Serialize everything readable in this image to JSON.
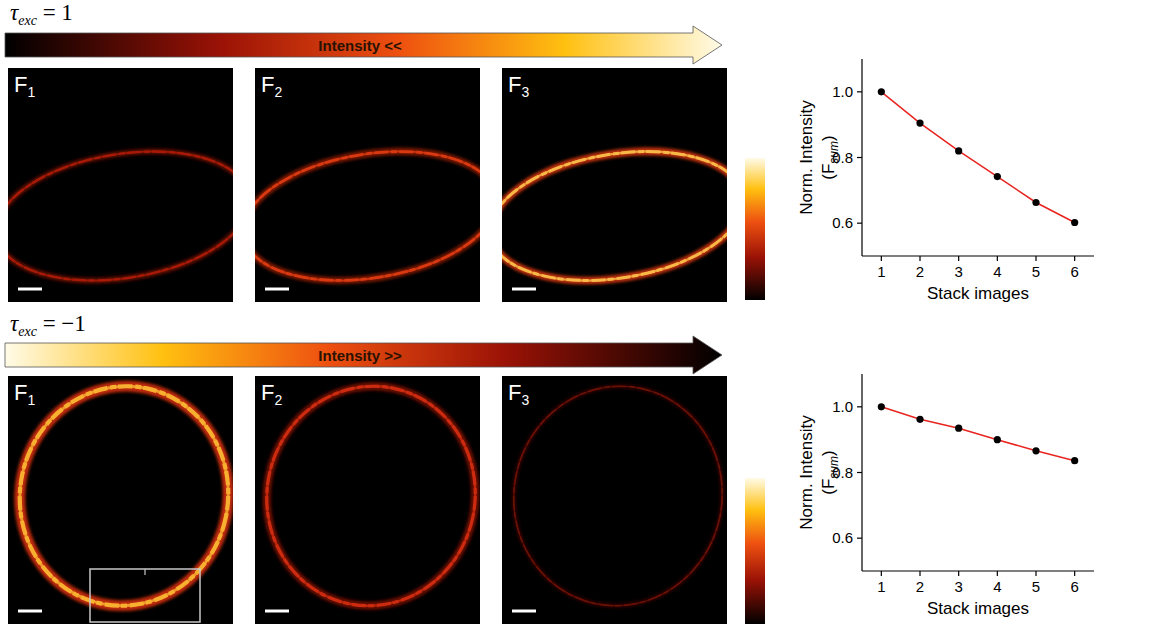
{
  "rows": [
    {
      "tau": {
        "symbol": "τ",
        "sub": "exc",
        "rest": " = 1"
      },
      "arrow_text": "Intensity <<",
      "frames": [
        {
          "main": "F",
          "sub": "1"
        },
        {
          "main": "F",
          "sub": "2"
        },
        {
          "main": "F",
          "sub": "3"
        }
      ]
    },
    {
      "tau": {
        "symbol": "τ",
        "sub": "exc",
        "rest": " = −1"
      },
      "arrow_text": "Intensity >>",
      "frames": [
        {
          "main": "F",
          "sub": "1"
        },
        {
          "main": "F",
          "sub": "2"
        },
        {
          "main": "F",
          "sub": "3"
        }
      ]
    }
  ],
  "chart_data": [
    {
      "type": "line",
      "xlabel": "Stack images",
      "ylabel": [
        "Norm. Intensity",
        "(F",
        "sum",
        ")"
      ],
      "x": [
        1,
        2,
        3,
        4,
        5,
        6
      ],
      "series": [
        {
          "color": "#e8241f",
          "marker": "circle",
          "values": [
            1.0,
            0.905,
            0.82,
            0.742,
            0.663,
            0.602
          ]
        }
      ],
      "xlim": [
        0.5,
        6.5
      ],
      "ylim": [
        0.5,
        1.1
      ],
      "xticks": [
        1,
        2,
        3,
        4,
        5,
        6
      ],
      "yticks": [
        0.6,
        0.8,
        {
          "value": 1,
          "label": "1.0"
        }
      ]
    },
    {
      "type": "line",
      "xlabel": "Stack images",
      "ylabel": [
        "Norm. Intensity",
        "(F",
        "sum",
        ")"
      ],
      "x": [
        1,
        2,
        3,
        4,
        5,
        6
      ],
      "series": [
        {
          "color": "#e8241f",
          "marker": "circle",
          "values": [
            1.0,
            0.962,
            0.935,
            0.9,
            0.866,
            0.836
          ]
        }
      ],
      "xlim": [
        0.5,
        6.5
      ],
      "ylim": [
        0.5,
        1.1
      ],
      "xticks": [
        1,
        2,
        3,
        4,
        5,
        6
      ],
      "yticks": [
        0.6,
        0.8,
        {
          "value": 1,
          "label": "1.0"
        }
      ]
    }
  ]
}
